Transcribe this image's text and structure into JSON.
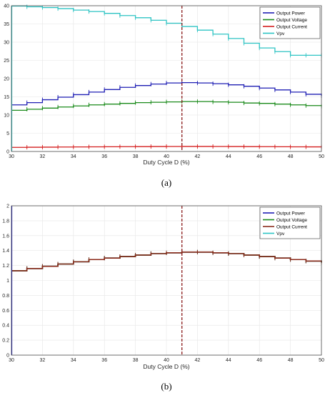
{
  "chart_data": [
    {
      "type": "line",
      "caption": "(a)",
      "xlabel": "Duty Cycle D (%)",
      "ylabel": "",
      "xlim": [
        30,
        50
      ],
      "ylim": [
        0,
        40
      ],
      "xticks": [
        30,
        32,
        34,
        36,
        38,
        40,
        42,
        44,
        46,
        48,
        50
      ],
      "yticks": [
        0,
        5,
        10,
        15,
        20,
        25,
        30,
        35,
        40
      ],
      "grid": true,
      "legend_position": "top-right",
      "marker_line": {
        "x": 41,
        "color": "#8b1a1a"
      },
      "series": [
        {
          "name": "Output Power",
          "color": "#1f1fb4",
          "step": true,
          "x": [
            30,
            31,
            32,
            33,
            34,
            35,
            36,
            37,
            38,
            39,
            40,
            41,
            42,
            43,
            44,
            45,
            46,
            47,
            48,
            49,
            50
          ],
          "values": [
            12.8,
            13.4,
            14.2,
            14.9,
            15.6,
            16.3,
            17.0,
            17.6,
            18.1,
            18.5,
            18.8,
            18.9,
            18.8,
            18.6,
            18.3,
            17.9,
            17.4,
            16.9,
            16.3,
            15.7,
            15.3
          ]
        },
        {
          "name": "Output Voltage",
          "color": "#1a8a1a",
          "step": true,
          "x": [
            30,
            31,
            32,
            33,
            34,
            35,
            36,
            37,
            38,
            39,
            40,
            41,
            42,
            43,
            44,
            45,
            46,
            47,
            48,
            49,
            50
          ],
          "values": [
            11.3,
            11.6,
            11.9,
            12.2,
            12.5,
            12.8,
            13.0,
            13.2,
            13.4,
            13.5,
            13.6,
            13.7,
            13.7,
            13.6,
            13.5,
            13.3,
            13.2,
            13.0,
            12.8,
            12.6,
            12.4
          ]
        },
        {
          "name": "Output Current",
          "color": "#d41c1c",
          "step": true,
          "x": [
            30,
            31,
            32,
            33,
            34,
            35,
            36,
            37,
            38,
            39,
            40,
            41,
            42,
            43,
            44,
            45,
            46,
            47,
            48,
            49,
            50
          ],
          "values": [
            1.13,
            1.16,
            1.19,
            1.22,
            1.25,
            1.28,
            1.3,
            1.32,
            1.34,
            1.36,
            1.37,
            1.38,
            1.38,
            1.37,
            1.36,
            1.34,
            1.32,
            1.3,
            1.28,
            1.26,
            1.24
          ]
        },
        {
          "name": "Vpv",
          "color": "#2ec4c4",
          "step": true,
          "x": [
            30,
            31,
            32,
            33,
            34,
            35,
            36,
            37,
            38,
            39,
            40,
            41,
            42,
            43,
            44,
            45,
            46,
            47,
            48,
            49,
            50
          ],
          "values": [
            39.9,
            39.7,
            39.5,
            39.2,
            38.8,
            38.4,
            37.9,
            37.3,
            36.7,
            36.0,
            35.2,
            34.3,
            33.3,
            32.2,
            31.0,
            29.7,
            28.4,
            27.4,
            26.4,
            26.4,
            26.4
          ]
        }
      ]
    },
    {
      "type": "line",
      "caption": "(b)",
      "xlabel": "Duty Cycle D (%)",
      "ylabel": "",
      "xlim": [
        30,
        50
      ],
      "ylim": [
        0,
        2
      ],
      "xticks": [
        30,
        32,
        34,
        36,
        38,
        40,
        42,
        44,
        46,
        48,
        50
      ],
      "yticks": [
        0,
        0.2,
        0.4,
        0.6,
        0.8,
        1,
        1.2,
        1.4,
        1.6,
        1.8,
        2
      ],
      "grid": true,
      "legend_position": "top-right",
      "marker_line": {
        "x": 41,
        "color": "#8b1a1a"
      },
      "series": [
        {
          "name": "Output Power",
          "color": "#1f1fb4",
          "step": true,
          "x": [
            30,
            31,
            32,
            33,
            34,
            35,
            36,
            37,
            38,
            39,
            40,
            41,
            42,
            43,
            44,
            45,
            46,
            47,
            48,
            49,
            50
          ],
          "values": [
            1.13,
            1.16,
            1.19,
            1.22,
            1.25,
            1.28,
            1.3,
            1.32,
            1.34,
            1.36,
            1.37,
            1.38,
            1.38,
            1.37,
            1.36,
            1.34,
            1.32,
            1.3,
            1.28,
            1.26,
            1.24
          ]
        },
        {
          "name": "Output Voltage",
          "color": "#1a8a1a",
          "step": true,
          "x": [
            30,
            31,
            32,
            33,
            34,
            35,
            36,
            37,
            38,
            39,
            40,
            41,
            42,
            43,
            44,
            45,
            46,
            47,
            48,
            49,
            50
          ],
          "values": [
            1.13,
            1.16,
            1.19,
            1.22,
            1.25,
            1.28,
            1.3,
            1.32,
            1.34,
            1.36,
            1.37,
            1.38,
            1.38,
            1.37,
            1.36,
            1.34,
            1.32,
            1.3,
            1.28,
            1.26,
            1.24
          ]
        },
        {
          "name": "Output Current",
          "color": "#8b2a1a",
          "step": true,
          "x": [
            30,
            31,
            32,
            33,
            34,
            35,
            36,
            37,
            38,
            39,
            40,
            41,
            42,
            43,
            44,
            45,
            46,
            47,
            48,
            49,
            50
          ],
          "values": [
            1.13,
            1.16,
            1.19,
            1.22,
            1.25,
            1.28,
            1.3,
            1.32,
            1.34,
            1.36,
            1.37,
            1.38,
            1.38,
            1.37,
            1.36,
            1.34,
            1.32,
            1.3,
            1.28,
            1.26,
            1.24
          ]
        },
        {
          "name": "Vpv",
          "color": "#2ec4c4",
          "step": true,
          "x": [],
          "values": []
        }
      ]
    }
  ]
}
